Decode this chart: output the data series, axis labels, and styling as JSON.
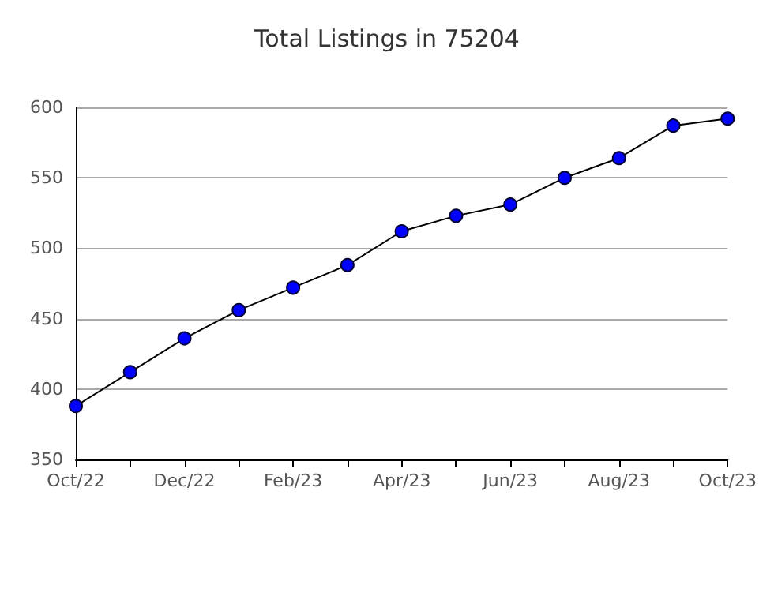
{
  "chart_data": {
    "type": "line",
    "title": "Total Listings in 75204",
    "categories": [
      "Oct/22",
      null,
      "Dec/22",
      null,
      "Feb/23",
      null,
      "Apr/23",
      null,
      "Jun/23",
      null,
      "Aug/23",
      null,
      "Oct/23"
    ],
    "series": [
      {
        "color": "#0000ff",
        "values": [
          388,
          412,
          436,
          456,
          472,
          488,
          512,
          523,
          531,
          550,
          564,
          587,
          592
        ]
      }
    ],
    "ylim": [
      350,
      600
    ],
    "yticks": [
      350,
      400,
      450,
      500,
      550,
      600
    ],
    "grid": "y",
    "marker": "circle",
    "line_style": "solid"
  }
}
